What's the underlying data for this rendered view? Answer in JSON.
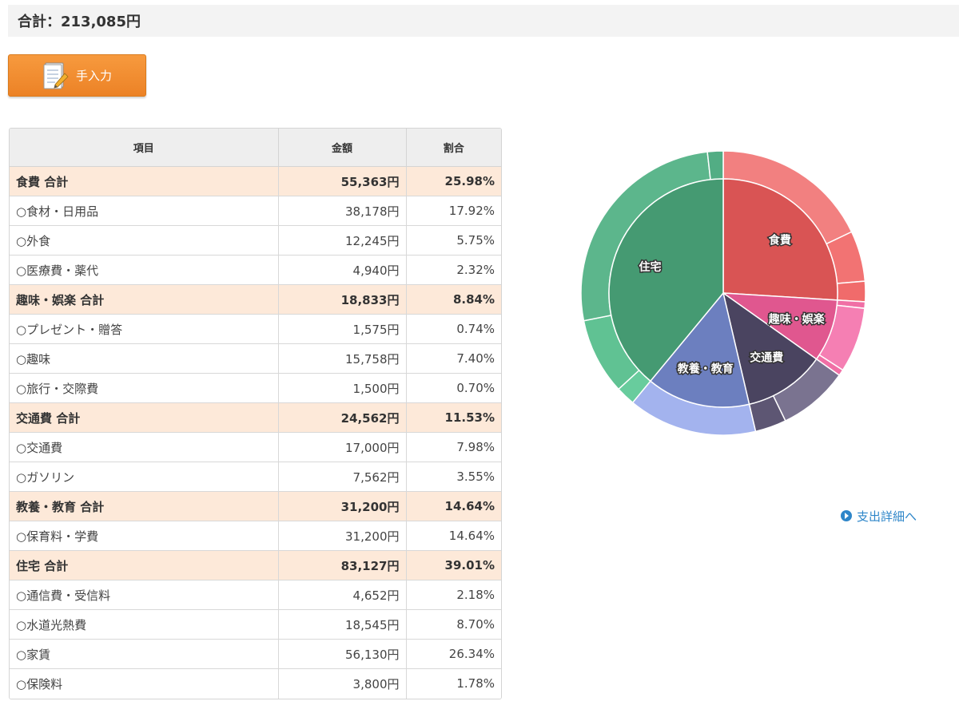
{
  "total": {
    "text": "合計：213,085円"
  },
  "manual_button": {
    "label": "手入力"
  },
  "table": {
    "headers": [
      "項目",
      "金額",
      "割合"
    ],
    "rows": [
      {
        "type": "group",
        "name": "食費 合計",
        "amount": "55,363円",
        "percent": "25.98%"
      },
      {
        "type": "item",
        "name": "○食材・日用品",
        "amount": "38,178円",
        "percent": "17.92%"
      },
      {
        "type": "item",
        "name": "○外食",
        "amount": "12,245円",
        "percent": "5.75%"
      },
      {
        "type": "item",
        "name": "○医療費・薬代",
        "amount": "4,940円",
        "percent": "2.32%"
      },
      {
        "type": "group",
        "name": "趣味・娯楽 合計",
        "amount": "18,833円",
        "percent": "8.84%"
      },
      {
        "type": "item",
        "name": "○プレゼント・贈答",
        "amount": "1,575円",
        "percent": "0.74%"
      },
      {
        "type": "item",
        "name": "○趣味",
        "amount": "15,758円",
        "percent": "7.40%"
      },
      {
        "type": "item",
        "name": "○旅行・交際費",
        "amount": "1,500円",
        "percent": "0.70%"
      },
      {
        "type": "group",
        "name": "交通費 合計",
        "amount": "24,562円",
        "percent": "11.53%"
      },
      {
        "type": "item",
        "name": "○交通費",
        "amount": "17,000円",
        "percent": "7.98%"
      },
      {
        "type": "item",
        "name": "○ガソリン",
        "amount": "7,562円",
        "percent": "3.55%"
      },
      {
        "type": "group",
        "name": "教養・教育 合計",
        "amount": "31,200円",
        "percent": "14.64%"
      },
      {
        "type": "item",
        "name": "○保育料・学費",
        "amount": "31,200円",
        "percent": "14.64%"
      },
      {
        "type": "group",
        "name": "住宅 合計",
        "amount": "83,127円",
        "percent": "39.01%"
      },
      {
        "type": "item",
        "name": "○通信費・受信料",
        "amount": "4,652円",
        "percent": "2.18%"
      },
      {
        "type": "item",
        "name": "○水道光熱費",
        "amount": "18,545円",
        "percent": "8.70%"
      },
      {
        "type": "item",
        "name": "○家賃",
        "amount": "56,130円",
        "percent": "26.34%"
      },
      {
        "type": "item",
        "name": "○保険料",
        "amount": "3,800円",
        "percent": "1.78%"
      }
    ]
  },
  "chart_data": {
    "type": "pie",
    "inner": [
      {
        "label": "食費",
        "value": 55363,
        "color": "#d95454"
      },
      {
        "label": "趣味・娯楽",
        "value": 18833,
        "color": "#e0578f"
      },
      {
        "label": "交通費",
        "value": 24562,
        "color": "#4a4460"
      },
      {
        "label": "教養・教育",
        "value": 31200,
        "color": "#6c7fbf"
      },
      {
        "label": "住宅",
        "value": 83127,
        "color": "#459a72"
      }
    ],
    "outer": [
      {
        "value": 38178,
        "color": "#f28080"
      },
      {
        "value": 12245,
        "color": "#f27373"
      },
      {
        "value": 4940,
        "color": "#f06b6b"
      },
      {
        "value": 1575,
        "color": "#f06fa5"
      },
      {
        "value": 15758,
        "color": "#f57fb3"
      },
      {
        "value": 1500,
        "color": "#f06fa5"
      },
      {
        "value": 17000,
        "color": "#7a7390"
      },
      {
        "value": 7562,
        "color": "#5d5673"
      },
      {
        "value": 31200,
        "color": "#a3b3ee"
      },
      {
        "value": 4652,
        "color": "#68cc9d"
      },
      {
        "value": 18545,
        "color": "#60c293"
      },
      {
        "value": 56130,
        "color": "#5cb68c"
      },
      {
        "value": 3800,
        "color": "#52ad84"
      }
    ]
  },
  "detail_link": {
    "label": "支出詳細へ"
  }
}
